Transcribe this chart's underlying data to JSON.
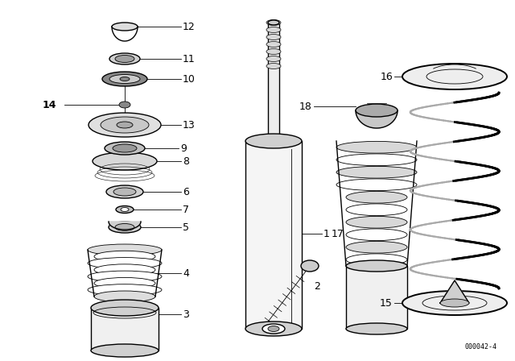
{
  "bg_color": "#ffffff",
  "line_color": "#000000",
  "fig_width": 6.4,
  "fig_height": 4.48,
  "dpi": 100,
  "watermark": "000042-4"
}
